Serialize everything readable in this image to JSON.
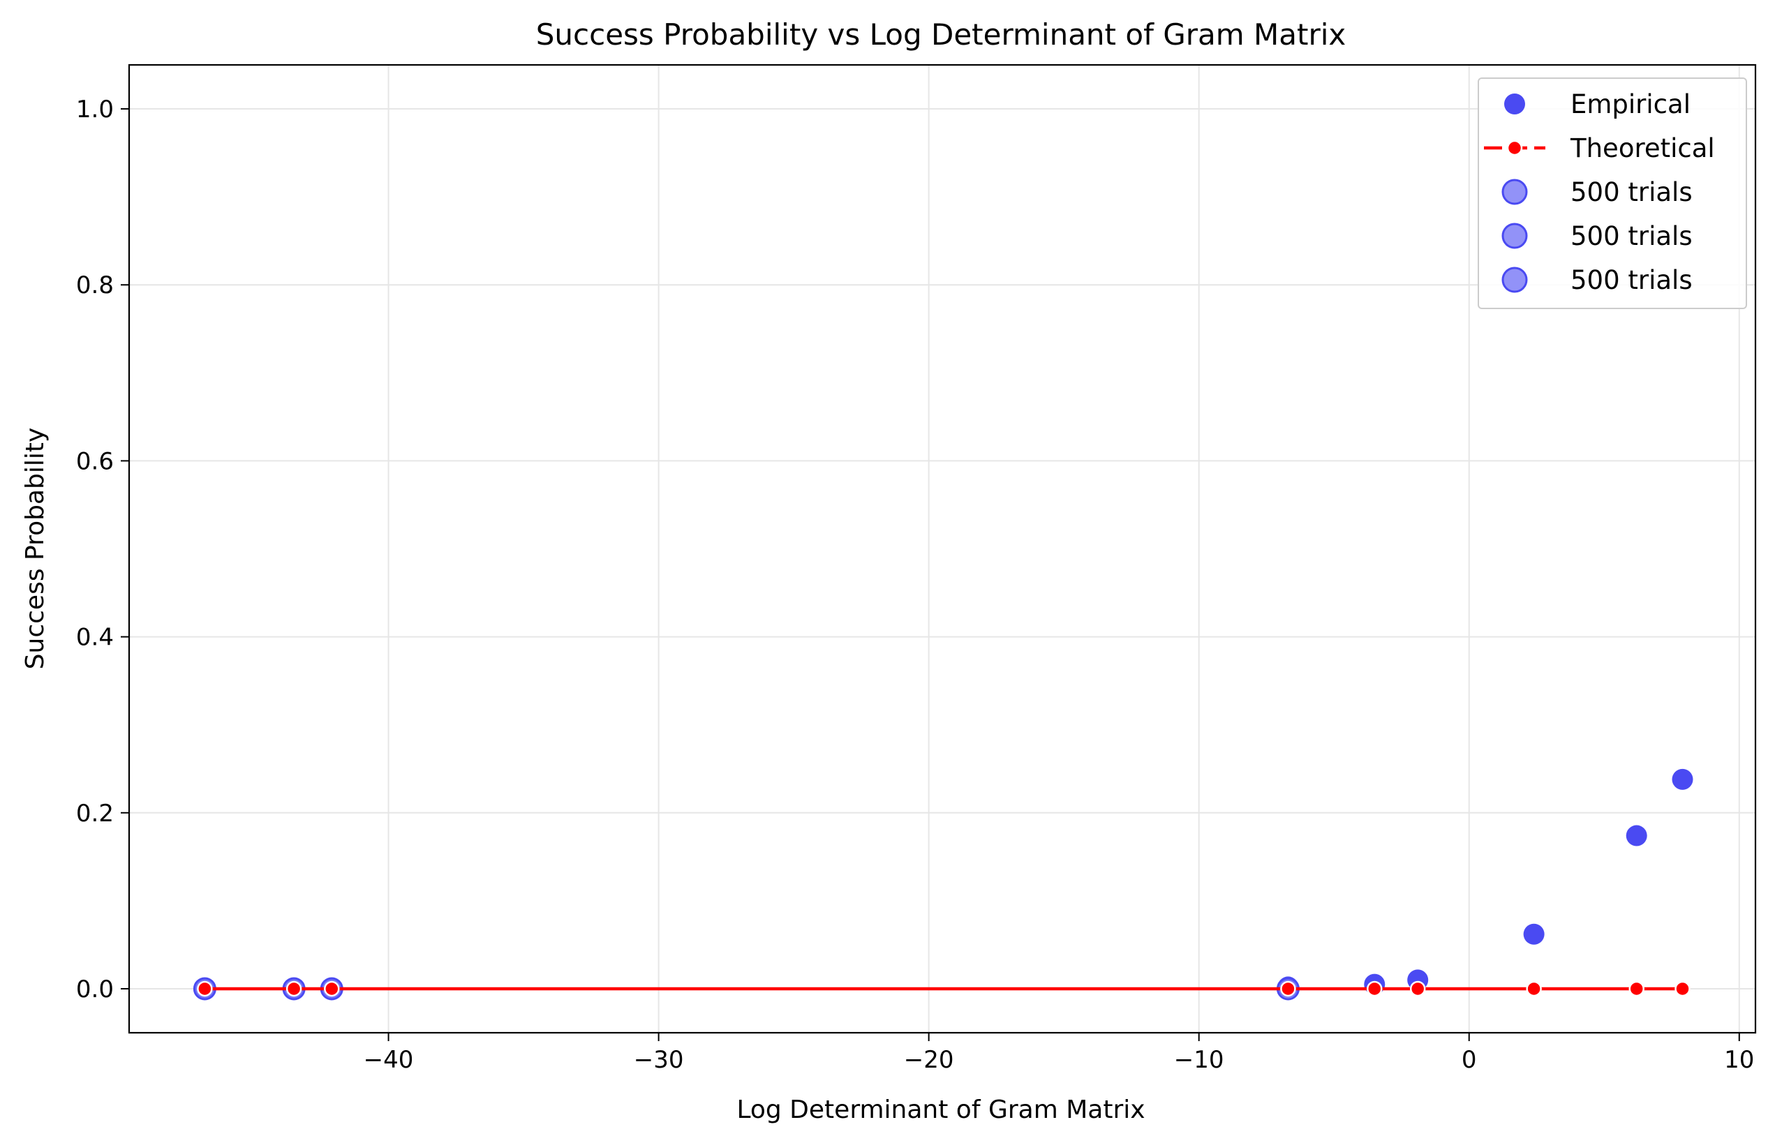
{
  "chart_data": {
    "type": "scatter",
    "title": "Success Probability vs Log Determinant of Gram Matrix",
    "xlabel": "Log Determinant of Gram Matrix",
    "ylabel": "Success Probability",
    "xlim": [
      -49.6,
      10.6
    ],
    "ylim": [
      -0.05,
      1.05
    ],
    "x_ticks": [
      -40,
      -30,
      -20,
      -10,
      0,
      10
    ],
    "x_tick_labels": [
      "−40",
      "−30",
      "−20",
      "−10",
      "0",
      "10"
    ],
    "y_ticks": [
      0.0,
      0.2,
      0.4,
      0.6,
      0.8,
      1.0
    ],
    "y_tick_labels": [
      "0.0",
      "0.2",
      "0.4",
      "0.6",
      "0.8",
      "1.0"
    ],
    "grid": true,
    "legend_position": "top-right",
    "legend": [
      "Empirical",
      "Theoretical",
      "500 trials",
      "500 trials",
      "500 trials"
    ],
    "colors": {
      "empirical": "#4a4af2",
      "theoretical": "#ff0000",
      "trials": "#7f7ff7",
      "grid": "#e6e6e6"
    },
    "series": [
      {
        "name": "Empirical",
        "x": [
          -46.8,
          -43.5,
          -42.1,
          -6.7,
          -3.5,
          -1.9,
          2.4,
          6.2,
          7.9
        ],
        "y": [
          0.0,
          0.0,
          0.0,
          0.002,
          0.005,
          0.01,
          0.062,
          0.174,
          0.238
        ]
      },
      {
        "name": "Theoretical",
        "x": [
          -46.8,
          -43.5,
          -42.1,
          -6.7,
          -3.5,
          -1.9,
          2.4,
          6.2,
          7.9
        ],
        "y": [
          0,
          0,
          0,
          0,
          0,
          0,
          0,
          0,
          0
        ]
      },
      {
        "name": "500 trials",
        "x": [
          -46.8,
          -43.5,
          -42.1,
          -6.7
        ],
        "y": [
          0,
          0,
          0,
          0
        ]
      }
    ]
  }
}
